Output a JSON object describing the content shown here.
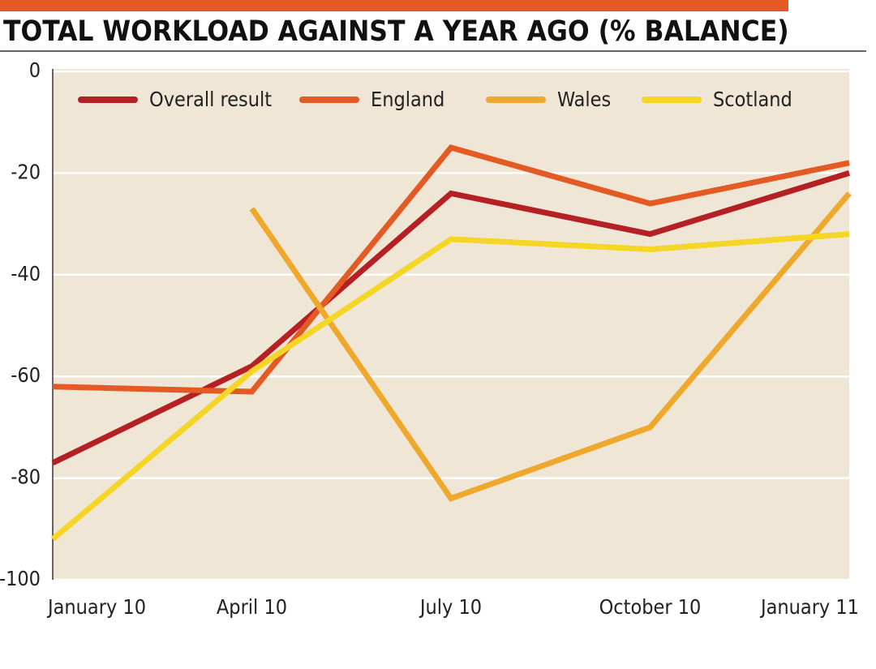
{
  "chart_data": {
    "type": "line",
    "title": "TOTAL WORKLOAD AGAINST A YEAR AGO (% BALANCE)",
    "categories": [
      "January 10",
      "April 10",
      "July 10",
      "October 10",
      "January 11"
    ],
    "series": [
      {
        "name": "Overall result",
        "color": "#b52025",
        "values": [
          -77,
          -58,
          -24,
          -32,
          -20
        ]
      },
      {
        "name": "England",
        "color": "#e35a25",
        "values": [
          -62,
          -63,
          -15,
          -26,
          -18
        ]
      },
      {
        "name": "Wales",
        "color": "#eea82b",
        "values": [
          null,
          -27,
          -84,
          -70,
          -24
        ]
      },
      {
        "name": "Scotland",
        "color": "#f5d626",
        "values": [
          -92,
          -59,
          -33,
          -35,
          -32
        ]
      }
    ],
    "ylim": [
      -100,
      0
    ],
    "yticks": [
      0,
      -20,
      -40,
      -60,
      -80,
      -100
    ],
    "grid": true
  }
}
